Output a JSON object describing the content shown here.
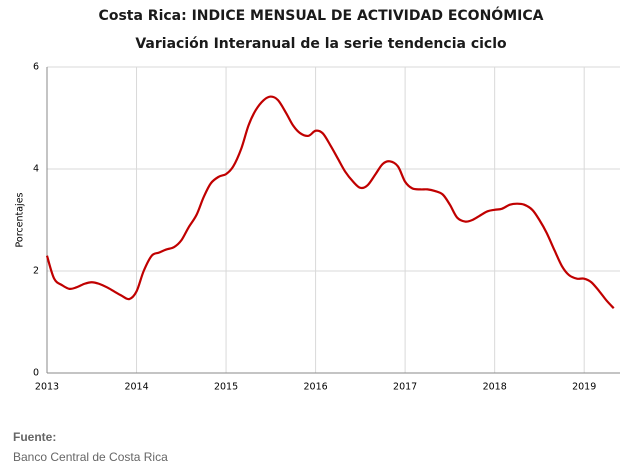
{
  "chart_data": {
    "type": "line",
    "title": "Costa Rica: INDICE MENSUAL DE ACTIVIDAD ECONÓMICA",
    "subtitle": "Variación Interanual de la serie tendencia ciclo",
    "y_label": "Porcentajes",
    "source_label": "Fuente:",
    "source": "Banco Central de Costa Rica",
    "x": [
      2013,
      2013.08,
      2013.17,
      2013.25,
      2013.33,
      2013.42,
      2013.5,
      2013.58,
      2013.67,
      2013.75,
      2013.83,
      2013.92,
      2014,
      2014.08,
      2014.17,
      2014.25,
      2014.33,
      2014.42,
      2014.5,
      2014.58,
      2014.67,
      2014.75,
      2014.83,
      2014.92,
      2015,
      2015.08,
      2015.17,
      2015.25,
      2015.33,
      2015.42,
      2015.5,
      2015.58,
      2015.67,
      2015.75,
      2015.83,
      2015.92,
      2016,
      2016.08,
      2016.17,
      2016.25,
      2016.33,
      2016.42,
      2016.5,
      2016.58,
      2016.67,
      2016.75,
      2016.83,
      2016.92,
      2017,
      2017.08,
      2017.17,
      2017.25,
      2017.33,
      2017.42,
      2017.5,
      2017.58,
      2017.67,
      2017.75,
      2017.83,
      2017.92,
      2018,
      2018.08,
      2018.17,
      2018.25,
      2018.33,
      2018.42,
      2018.5,
      2018.58,
      2018.67,
      2018.75,
      2018.83,
      2018.92,
      2019,
      2019.08,
      2019.17,
      2019.25,
      2019.33
    ],
    "series": [
      {
        "name": "Variación interanual",
        "color": "#c00000",
        "values": [
          2.3,
          1.85,
          1.72,
          1.65,
          1.68,
          1.75,
          1.78,
          1.75,
          1.68,
          1.6,
          1.52,
          1.45,
          1.6,
          2.0,
          2.3,
          2.36,
          2.42,
          2.47,
          2.6,
          2.85,
          3.1,
          3.45,
          3.72,
          3.85,
          3.9,
          4.05,
          4.4,
          4.85,
          5.15,
          5.35,
          5.42,
          5.35,
          5.1,
          4.85,
          4.7,
          4.65,
          4.75,
          4.7,
          4.45,
          4.2,
          3.95,
          3.75,
          3.63,
          3.68,
          3.9,
          4.1,
          4.15,
          4.05,
          3.75,
          3.62,
          3.6,
          3.6,
          3.57,
          3.5,
          3.3,
          3.05,
          2.97,
          3.0,
          3.08,
          3.17,
          3.2,
          3.22,
          3.3,
          3.32,
          3.3,
          3.2,
          3.0,
          2.75,
          2.4,
          2.1,
          1.92,
          1.85,
          1.85,
          1.78,
          1.6,
          1.42,
          1.27
        ]
      }
    ],
    "xlim": [
      2013,
      2019.4
    ],
    "xticks": [
      2013,
      2014,
      2015,
      2016,
      2017,
      2018,
      2019
    ],
    "ylim": [
      0,
      6
    ],
    "yticks": [
      0,
      2,
      4,
      6
    ],
    "grid": true
  }
}
